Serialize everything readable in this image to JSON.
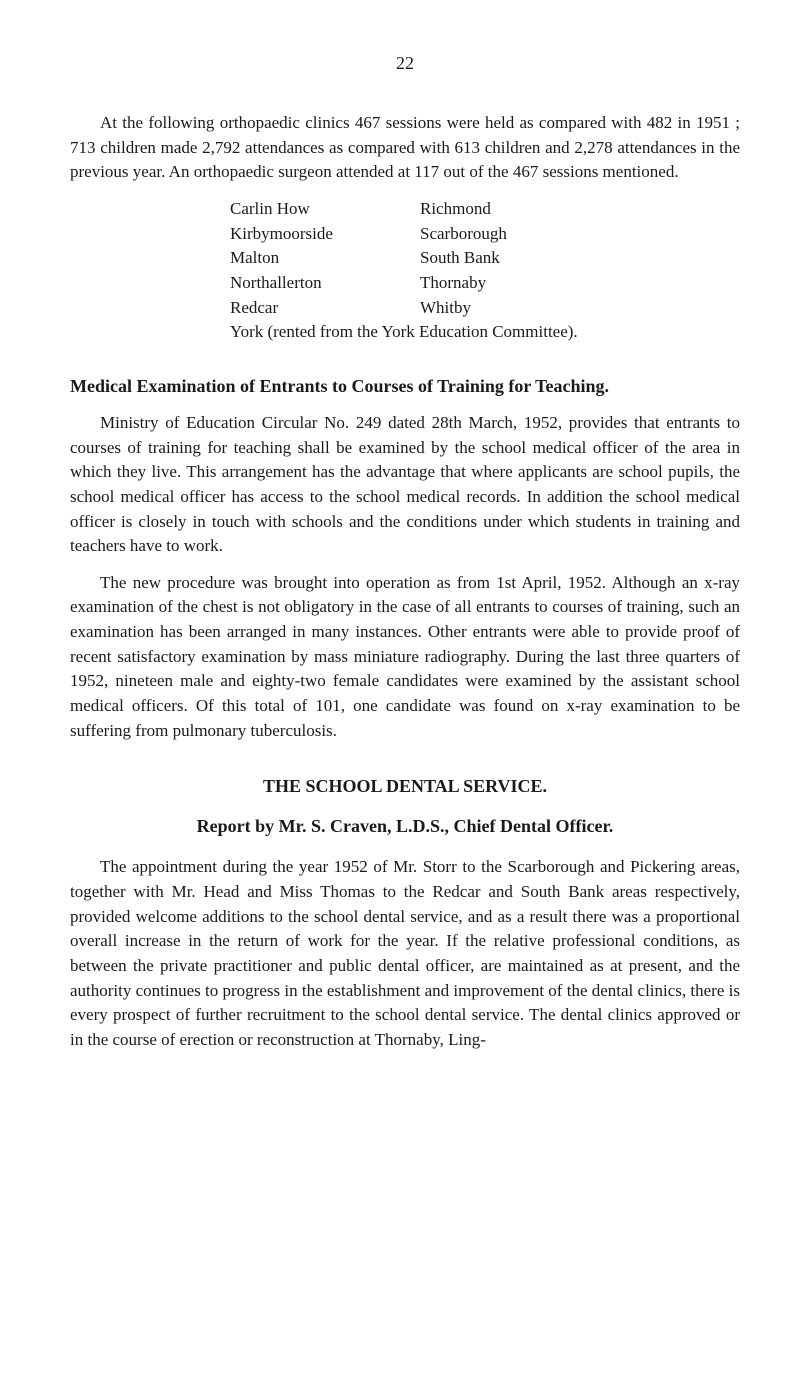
{
  "page_number": "22",
  "intro_paragraph": "At the following orthopaedic clinics 467 sessions were held as compared with 482 in 1951 ; 713 children made 2,792 attendances as compared with 613 children and 2,278 attendances in the previous year. An orthopaedic surgeon attended at 117 out of the 467 sessions mentioned.",
  "clinic_pairs": [
    {
      "left": "Carlin How",
      "right": "Richmond"
    },
    {
      "left": "Kirbymoorside",
      "right": "Scarborough"
    },
    {
      "left": "Malton",
      "right": "South Bank"
    },
    {
      "left": "Northallerton",
      "right": "Thornaby"
    },
    {
      "left": "Redcar",
      "right": "Whitby"
    }
  ],
  "clinic_final_line": "York (rented from the York Education Committee).",
  "medical_heading": "Medical Examination of Entrants to Courses of Training for Teaching.",
  "medical_para1": "Ministry of Education Circular No. 249 dated 28th March, 1952, provides that entrants to courses of training for teaching shall be examined by the school medical officer of the area in which they live. This arrangement has the advantage that where applicants are school pupils, the school medical officer has access to the school medical records. In addition the school medical officer is closely in touch with schools and the conditions under which students in training and teachers have to work.",
  "medical_para2": "The new procedure was brought into operation as from 1st April, 1952. Although an x-ray examination of the chest is not obligatory in the case of all entrants to courses of training, such an examination has been arranged in many instances. Other entrants were able to provide proof of recent satis­factory examination by mass miniature radiography. During the last three quarters of 1952, nineteen male and eighty-two female candidates were examined by the assistant school medical officers. Of this total of 101, one candidate was found on x-ray examination to be suffering from pulmonary tuberculosis.",
  "dental_heading": "THE SCHOOL DENTAL SERVICE.",
  "dental_subheading": "Report by Mr. S. Craven, L.D.S., Chief Dental Officer.",
  "dental_para1": "The appointment during the year 1952 of Mr. Storr to the Scarborough and Pickering areas, together with Mr. Head and Miss Thomas to the Redcar and South Bank areas respectively, provided welcome additions to the school dental service, and as a result there was a proportional overall increase in the return of work for the year. If the relative professional conditions, as between the private practitioner and public dental officer, are maintained as at present, and the authority continues to progress in the establishment and improvement of the dental clinics, there is every prospect of further recruitment to the school dental service. The dental clinics approved or in the course of erection or reconstruction at Thornaby, Ling-"
}
